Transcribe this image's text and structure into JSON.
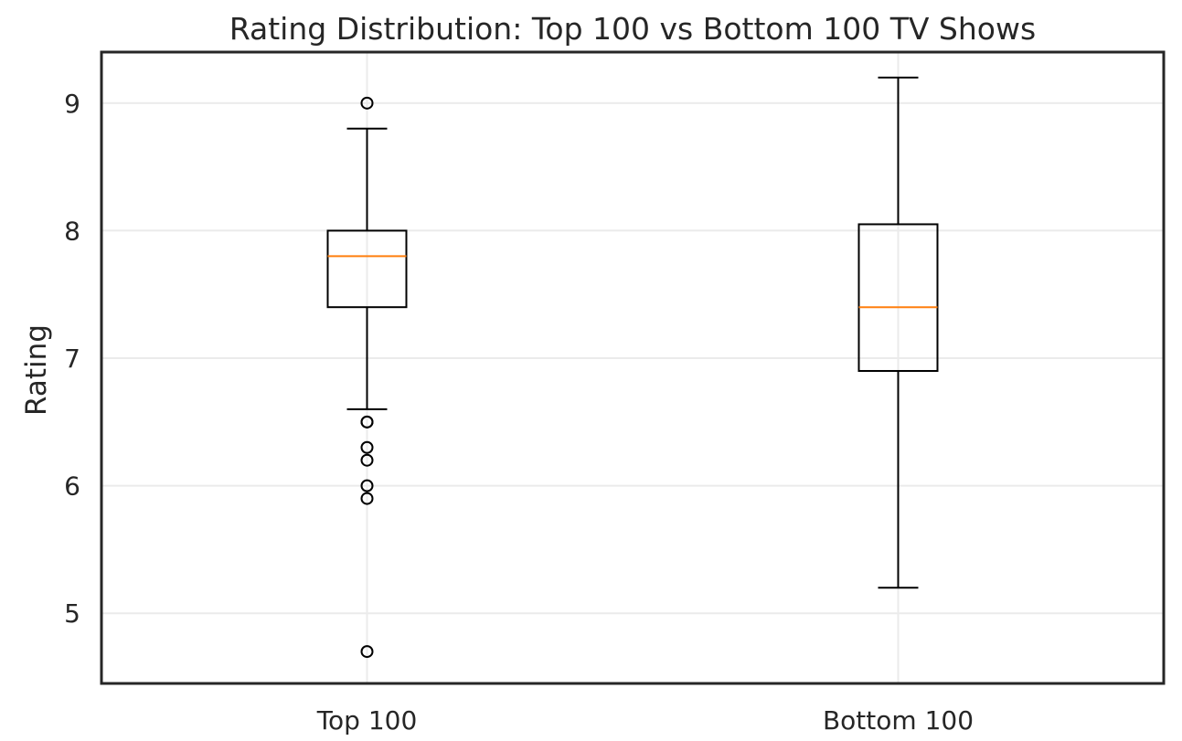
{
  "chart_data": {
    "type": "boxplot",
    "title": "Rating Distribution: Top 100 vs Bottom 100 TV Shows",
    "xlabel": "",
    "ylabel": "Rating",
    "ylim": [
      4.45,
      9.4
    ],
    "yticks": [
      5,
      6,
      7,
      8,
      9
    ],
    "ytick_labels": [
      "5",
      "6",
      "7",
      "8",
      "9"
    ],
    "grid": true,
    "categories": [
      "Top 100",
      "Bottom 100"
    ],
    "series": [
      {
        "name": "Top 100",
        "whisker_low": 6.6,
        "q1": 7.4,
        "median": 7.8,
        "q3": 8.0,
        "whisker_high": 8.8,
        "outliers": [
          9.0,
          6.5,
          6.5,
          6.3,
          6.2,
          6.0,
          5.9,
          4.7
        ]
      },
      {
        "name": "Bottom 100",
        "whisker_low": 5.2,
        "q1": 6.9,
        "median": 7.4,
        "q3": 8.05,
        "whisker_high": 9.2,
        "outliers": []
      }
    ],
    "colors": {
      "box": "#000000",
      "median": "#ff7f0e",
      "grid": "#ebebeb",
      "frame": "#262626",
      "text": "#262626"
    }
  }
}
